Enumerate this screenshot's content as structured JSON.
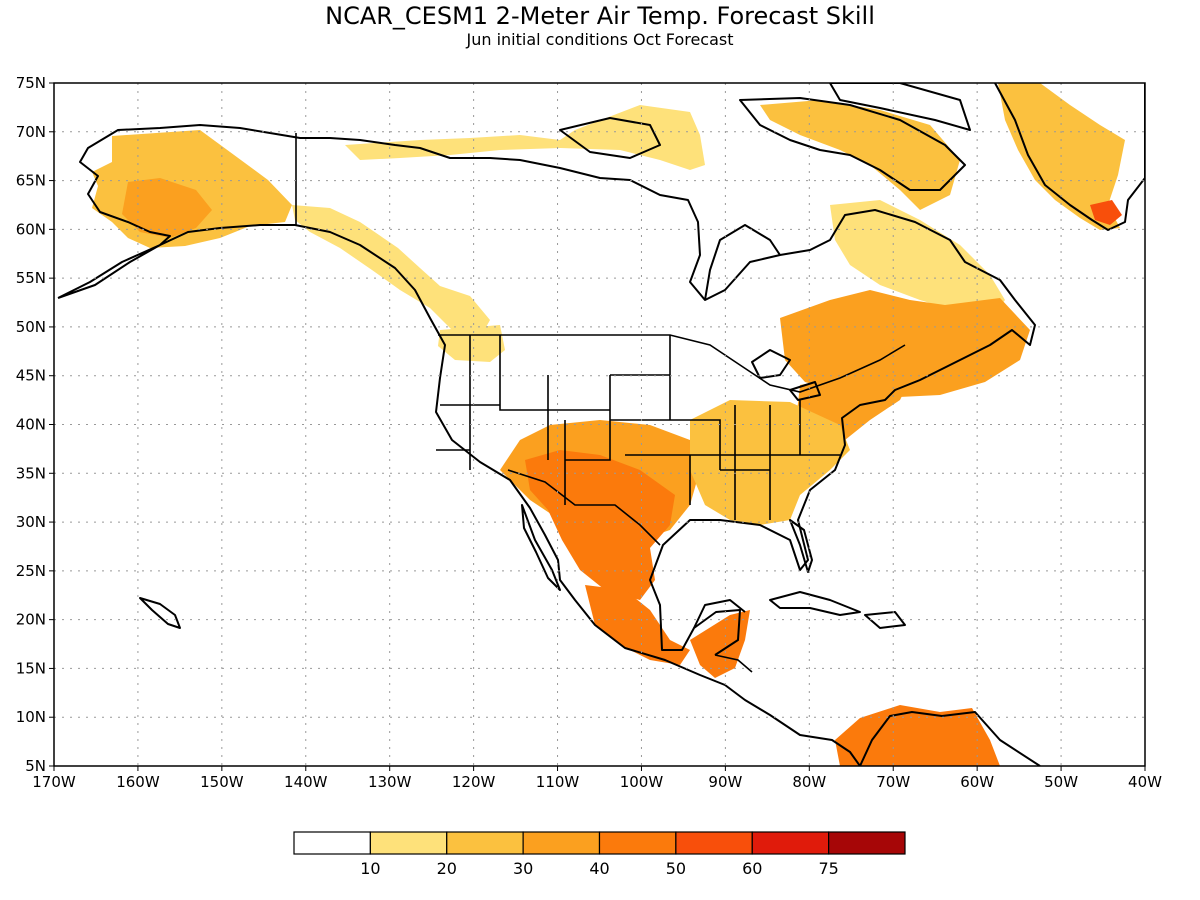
{
  "title": "NCAR_CESM1 2-Meter Air Temp. Forecast Skill",
  "subtitle": "Jun initial conditions  Oct Forecast",
  "map": {
    "lon_range": [
      -170,
      -40
    ],
    "lat_range": [
      5,
      75
    ],
    "lon_ticks": [
      "170W",
      "160W",
      "150W",
      "140W",
      "130W",
      "120W",
      "110W",
      "100W",
      "90W",
      "80W",
      "70W",
      "60W",
      "50W",
      "40W"
    ],
    "lat_ticks": [
      "5N",
      "10N",
      "15N",
      "20N",
      "25N",
      "30N",
      "35N",
      "40N",
      "45N",
      "50N",
      "55N",
      "60N",
      "65N",
      "70N",
      "75N"
    ],
    "gridlines": true,
    "regions": [
      {
        "name": "alaska",
        "level": 2
      },
      {
        "name": "gulf-of-alaska-coast",
        "level": 1
      },
      {
        "name": "bc-coast",
        "level": 1
      },
      {
        "name": "arctic-islands",
        "level": 1
      },
      {
        "name": "baffin-island",
        "level": 2
      },
      {
        "name": "labrador-quebec",
        "level": 1
      },
      {
        "name": "ontario-quebec",
        "level": 3
      },
      {
        "name": "new-england",
        "level": 3
      },
      {
        "name": "us-southwest",
        "level": 3
      },
      {
        "name": "texas-mexico-core",
        "level": 4
      },
      {
        "name": "us-southeast",
        "level": 2
      },
      {
        "name": "mexico-central",
        "level": 4
      },
      {
        "name": "central-america",
        "level": 4
      },
      {
        "name": "venezuela-colombia",
        "level": 4
      },
      {
        "name": "greenland",
        "level": 2
      },
      {
        "name": "greenland-south-tip",
        "level": 5
      }
    ]
  },
  "legend": {
    "labels": [
      "10",
      "20",
      "30",
      "40",
      "50",
      "60",
      "75"
    ],
    "colors": [
      "#ffffff",
      "#fee17a",
      "#fbc13f",
      "#fba01f",
      "#fb7a0c",
      "#f84f0b",
      "#e01b0b",
      "#a60607"
    ]
  }
}
